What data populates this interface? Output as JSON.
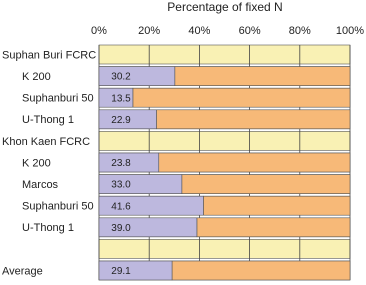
{
  "chart_data": {
    "type": "bar",
    "orientation": "horizontal",
    "title": "Percentage of fixed N",
    "categories": [
      "Suphan Buri FCRC",
      "K 200",
      "Suphanburi 50",
      "U-Thong 1",
      "Khon Kaen FCRC",
      "K 200",
      "Marcos",
      "Suphanburi 50",
      "U-Thong 1",
      null,
      "Average"
    ],
    "values": [
      null,
      30.2,
      13.5,
      22.9,
      null,
      23.8,
      33.0,
      41.6,
      39.0,
      null,
      29.1
    ],
    "value_labels": [
      null,
      "30.2",
      "13.5",
      "22.9",
      null,
      "23.8",
      "33.0",
      "41.6",
      "39.0",
      null,
      "29.1"
    ],
    "color": "#bdb8de",
    "xlim": [
      0,
      100
    ],
    "xticks": [
      {
        "value": 0,
        "label": "0%"
      },
      {
        "value": 20,
        "label": "20%"
      },
      {
        "value": 40,
        "label": "40%"
      },
      {
        "value": 60,
        "label": "60%"
      },
      {
        "value": 80,
        "label": "80%"
      },
      {
        "value": 100,
        "label": "100%"
      }
    ],
    "grid": true
  }
}
